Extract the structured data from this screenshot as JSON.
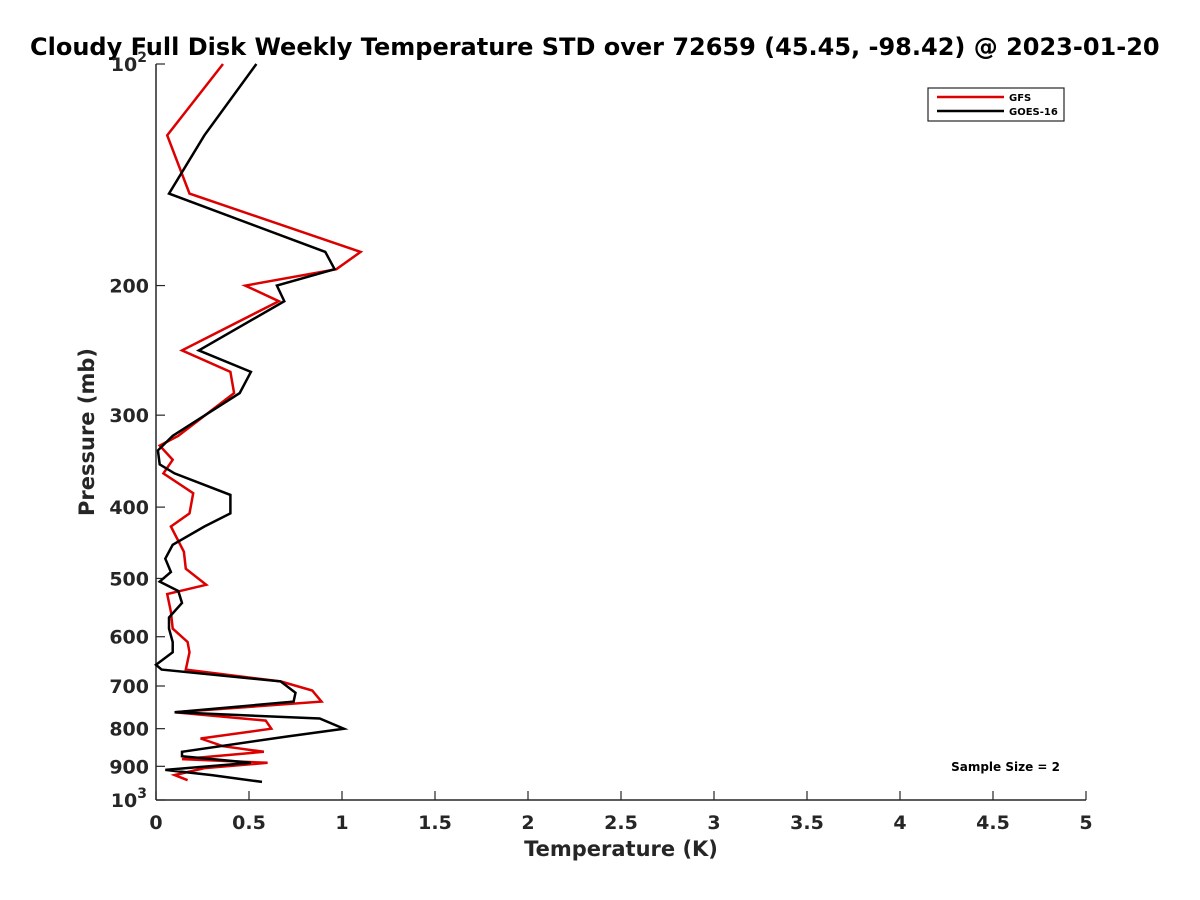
{
  "chart_data": {
    "type": "line",
    "title": "Cloudy Full Disk Weekly Temperature STD over 72659 (45.45, -98.42) @ 2023-01-20",
    "xlabel": "Temperature (K)",
    "ylabel": "Pressure (mb)",
    "xlim": [
      0,
      5
    ],
    "ylim": [
      100,
      1000
    ],
    "y_scale": "log",
    "y_reversed": true,
    "grid": false,
    "legend_position": "top-right",
    "x_ticks": [
      "0",
      "0.5",
      "1",
      "1.5",
      "2",
      "2.5",
      "3",
      "3.5",
      "4",
      "4.5",
      "5"
    ],
    "x_tick_values": [
      0,
      0.5,
      1,
      1.5,
      2,
      2.5,
      3,
      3.5,
      4,
      4.5,
      5
    ],
    "y_ticks": [
      "200",
      "300",
      "400",
      "500",
      "600",
      "700",
      "800",
      "900"
    ],
    "y_tick_values": [
      200,
      300,
      400,
      500,
      600,
      700,
      800,
      900
    ],
    "y_end_labels": [
      {
        "base": "10",
        "exp": "2",
        "value": 100
      },
      {
        "base": "10",
        "exp": "3",
        "value": 1000
      }
    ],
    "annotation": "Sample Size = 2",
    "series": [
      {
        "name": "GFS",
        "color": "#dd0000",
        "points": [
          [
            0.36,
            100
          ],
          [
            0.06,
            125
          ],
          [
            0.18,
            150
          ],
          [
            1.1,
            180
          ],
          [
            0.97,
            190
          ],
          [
            0.48,
            200
          ],
          [
            0.66,
            210
          ],
          [
            0.14,
            245
          ],
          [
            0.4,
            262
          ],
          [
            0.42,
            280
          ],
          [
            0.12,
            320
          ],
          [
            0.02,
            330
          ],
          [
            0.09,
            345
          ],
          [
            0.04,
            360
          ],
          [
            0.2,
            383
          ],
          [
            0.18,
            408
          ],
          [
            0.08,
            425
          ],
          [
            0.15,
            460
          ],
          [
            0.16,
            485
          ],
          [
            0.27,
            510
          ],
          [
            0.06,
            525
          ],
          [
            0.08,
            555
          ],
          [
            0.09,
            585
          ],
          [
            0.17,
            610
          ],
          [
            0.18,
            630
          ],
          [
            0.16,
            665
          ],
          [
            0.67,
            690
          ],
          [
            0.84,
            710
          ],
          [
            0.89,
            735
          ],
          [
            0.1,
            760
          ],
          [
            0.59,
            780
          ],
          [
            0.62,
            800
          ],
          [
            0.24,
            825
          ],
          [
            0.36,
            845
          ],
          [
            0.58,
            860
          ],
          [
            0.14,
            880
          ],
          [
            0.6,
            890
          ],
          [
            0.26,
            905
          ],
          [
            0.1,
            925
          ],
          [
            0.17,
            940
          ]
        ]
      },
      {
        "name": "GOES-16",
        "color": "#000000",
        "points": [
          [
            0.54,
            100
          ],
          [
            0.26,
            125
          ],
          [
            0.07,
            150
          ],
          [
            0.91,
            180
          ],
          [
            0.96,
            190
          ],
          [
            0.65,
            200
          ],
          [
            0.69,
            210
          ],
          [
            0.23,
            245
          ],
          [
            0.51,
            262
          ],
          [
            0.45,
            280
          ],
          [
            0.09,
            320
          ],
          [
            0.01,
            335
          ],
          [
            0.02,
            350
          ],
          [
            0.1,
            360
          ],
          [
            0.4,
            385
          ],
          [
            0.4,
            408
          ],
          [
            0.26,
            425
          ],
          [
            0.09,
            450
          ],
          [
            0.05,
            470
          ],
          [
            0.08,
            490
          ],
          [
            0.02,
            505
          ],
          [
            0.12,
            520
          ],
          [
            0.14,
            540
          ],
          [
            0.07,
            565
          ],
          [
            0.07,
            585
          ],
          [
            0.09,
            610
          ],
          [
            0.09,
            630
          ],
          [
            0.0,
            655
          ],
          [
            0.03,
            665
          ],
          [
            0.67,
            690
          ],
          [
            0.75,
            715
          ],
          [
            0.74,
            735
          ],
          [
            0.1,
            760
          ],
          [
            0.88,
            775
          ],
          [
            1.01,
            800
          ],
          [
            0.7,
            820
          ],
          [
            0.14,
            860
          ],
          [
            0.14,
            872
          ],
          [
            0.51,
            890
          ],
          [
            0.05,
            910
          ],
          [
            0.3,
            925
          ],
          [
            0.57,
            945
          ]
        ]
      }
    ]
  }
}
